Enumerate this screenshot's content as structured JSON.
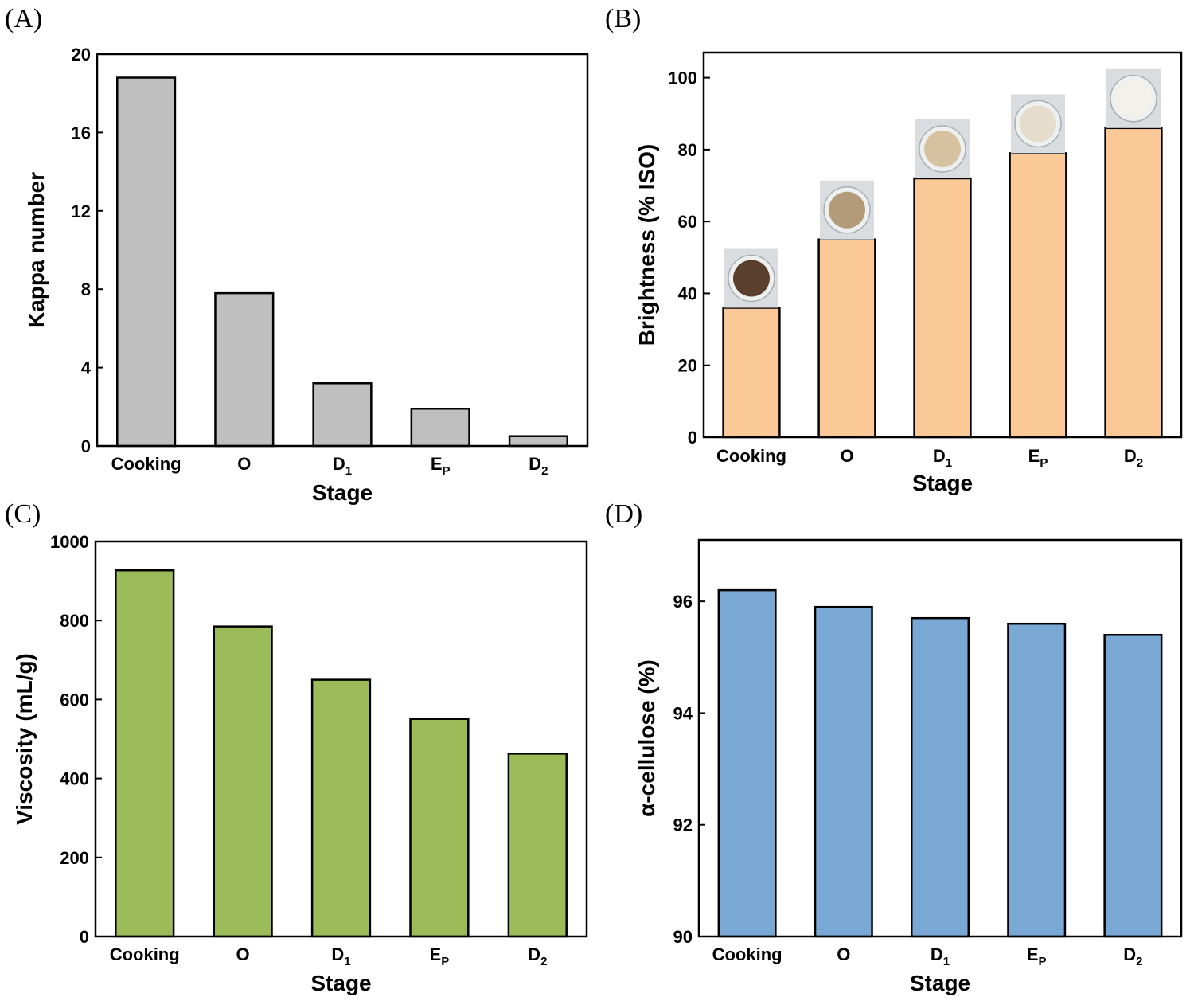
{
  "chart_data": [
    {
      "panel": "(A)",
      "type": "bar",
      "categories": [
        {
          "main": "Cooking",
          "sub": ""
        },
        {
          "main": "O",
          "sub": ""
        },
        {
          "main": "D",
          "sub": "1"
        },
        {
          "main": "E",
          "sub": "P"
        },
        {
          "main": "D",
          "sub": "2"
        }
      ],
      "values": [
        18.8,
        7.8,
        3.2,
        1.9,
        0.5
      ],
      "xlabel": "Stage",
      "ylabel": "Kappa number",
      "ylim": [
        0,
        20
      ],
      "yticks": [
        0,
        4,
        8,
        12,
        16,
        20
      ],
      "color": "#bfbfbf",
      "photos": false
    },
    {
      "panel": "(B)",
      "type": "bar",
      "categories": [
        {
          "main": "Cooking",
          "sub": ""
        },
        {
          "main": "O",
          "sub": ""
        },
        {
          "main": "D",
          "sub": "1"
        },
        {
          "main": "E",
          "sub": "P"
        },
        {
          "main": "D",
          "sub": "2"
        }
      ],
      "values": [
        36,
        55,
        72,
        79,
        86
      ],
      "xlabel": "Stage",
      "ylabel": "Brightness (% ISO)",
      "ylim": [
        0,
        107
      ],
      "yticks": [
        0,
        20,
        40,
        60,
        80,
        100
      ],
      "color": "#fbc898",
      "photos": true,
      "photo_tones": [
        "#5a3f2c",
        "#b39a78",
        "#d6c2a0",
        "#e6dccb",
        "#f4f1ea"
      ]
    },
    {
      "panel": "(C)",
      "type": "bar",
      "categories": [
        {
          "main": "Cooking",
          "sub": ""
        },
        {
          "main": "O",
          "sub": ""
        },
        {
          "main": "D",
          "sub": "1"
        },
        {
          "main": "E",
          "sub": "P"
        },
        {
          "main": "D",
          "sub": "2"
        }
      ],
      "values": [
        927,
        785,
        650,
        551,
        463
      ],
      "xlabel": "Stage",
      "ylabel": "Viscosity (mL/g)",
      "ylim": [
        0,
        1000
      ],
      "yticks": [
        0,
        200,
        400,
        600,
        800,
        1000
      ],
      "color": "#9bbb59",
      "photos": false
    },
    {
      "panel": "(D)",
      "type": "bar",
      "categories": [
        {
          "main": "Cooking",
          "sub": ""
        },
        {
          "main": "O",
          "sub": ""
        },
        {
          "main": "D",
          "sub": "1"
        },
        {
          "main": "E",
          "sub": "P"
        },
        {
          "main": "D",
          "sub": "2"
        }
      ],
      "values": [
        96.2,
        95.9,
        95.7,
        95.6,
        95.4
      ],
      "xlabel": "Stage",
      "ylabel": "α-cellulose (%)",
      "ylim": [
        90,
        97.1
      ],
      "yticks": [
        90,
        92,
        94,
        96
      ],
      "color": "#7aa8d4",
      "photos": false
    }
  ]
}
